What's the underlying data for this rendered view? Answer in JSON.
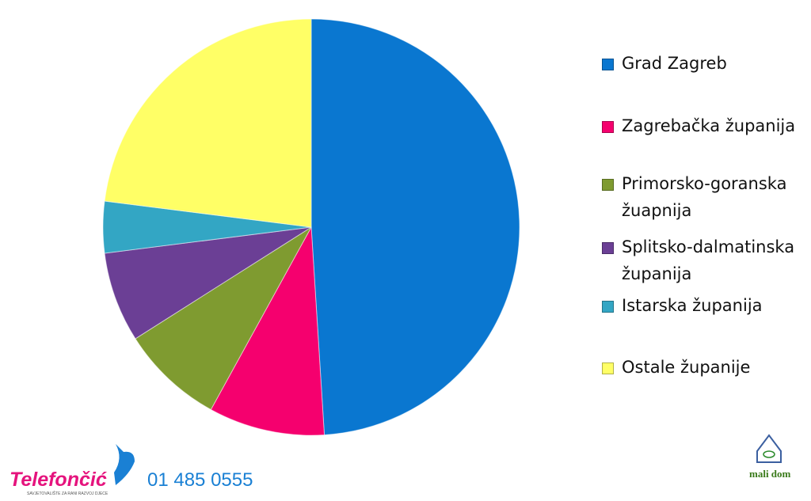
{
  "chart_data": {
    "type": "pie",
    "categories": [
      "Grad Zagreb",
      "Zagrebačka županija",
      "Primorsko-goranska žuapnija",
      "Splitsko-dalmatinska županija",
      "Istarska županija",
      "Ostale županije"
    ],
    "values": [
      49,
      9,
      8,
      7,
      4,
      23
    ],
    "colors": [
      "#0a77d0",
      "#f5006e",
      "#7f9b30",
      "#6b3f95",
      "#33a6c4",
      "#ffff66"
    ],
    "legend": "right"
  },
  "footer": {
    "brand": "Telefončić",
    "tagline": "SAVJETOVALIŠTE ZA RANI RAZVOJ DJECE",
    "phone": "01 485 0555",
    "partner": "mali dom"
  }
}
